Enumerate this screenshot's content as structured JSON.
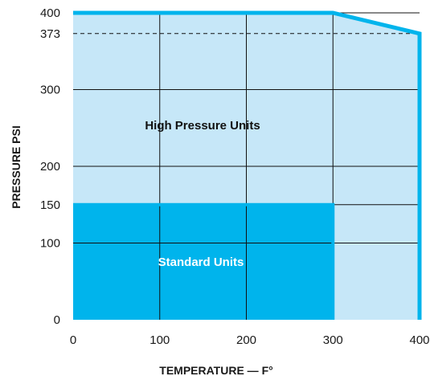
{
  "chart_data": {
    "type": "area",
    "xlabel": "TEMPERATURE — F°",
    "ylabel": "PRESSURE PSI",
    "xlim": [
      0,
      400
    ],
    "ylim": [
      0,
      400
    ],
    "x_ticks": [
      "0",
      "100",
      "200",
      "300",
      "400"
    ],
    "y_ticks": [
      "0",
      "100",
      "150",
      "200",
      "300",
      "373",
      "400"
    ],
    "grid": true,
    "series": [
      {
        "name": "High Pressure Units",
        "x": [
          0,
          300,
          400,
          400
        ],
        "y": [
          400,
          400,
          373,
          0
        ]
      },
      {
        "name": "Standard Units",
        "x": [
          0,
          300,
          300
        ],
        "y": [
          150,
          150,
          0
        ]
      }
    ],
    "reference_line": {
      "y": 373,
      "style": "dashed"
    },
    "colors": {
      "high_pressure_fill": "#c6e7f8",
      "standard_fill": "#00b4ec",
      "boundary_stroke": "#00b4ec",
      "grid": "#111111",
      "standard_label": "#ffffff",
      "high_pressure_label": "#111111"
    }
  }
}
